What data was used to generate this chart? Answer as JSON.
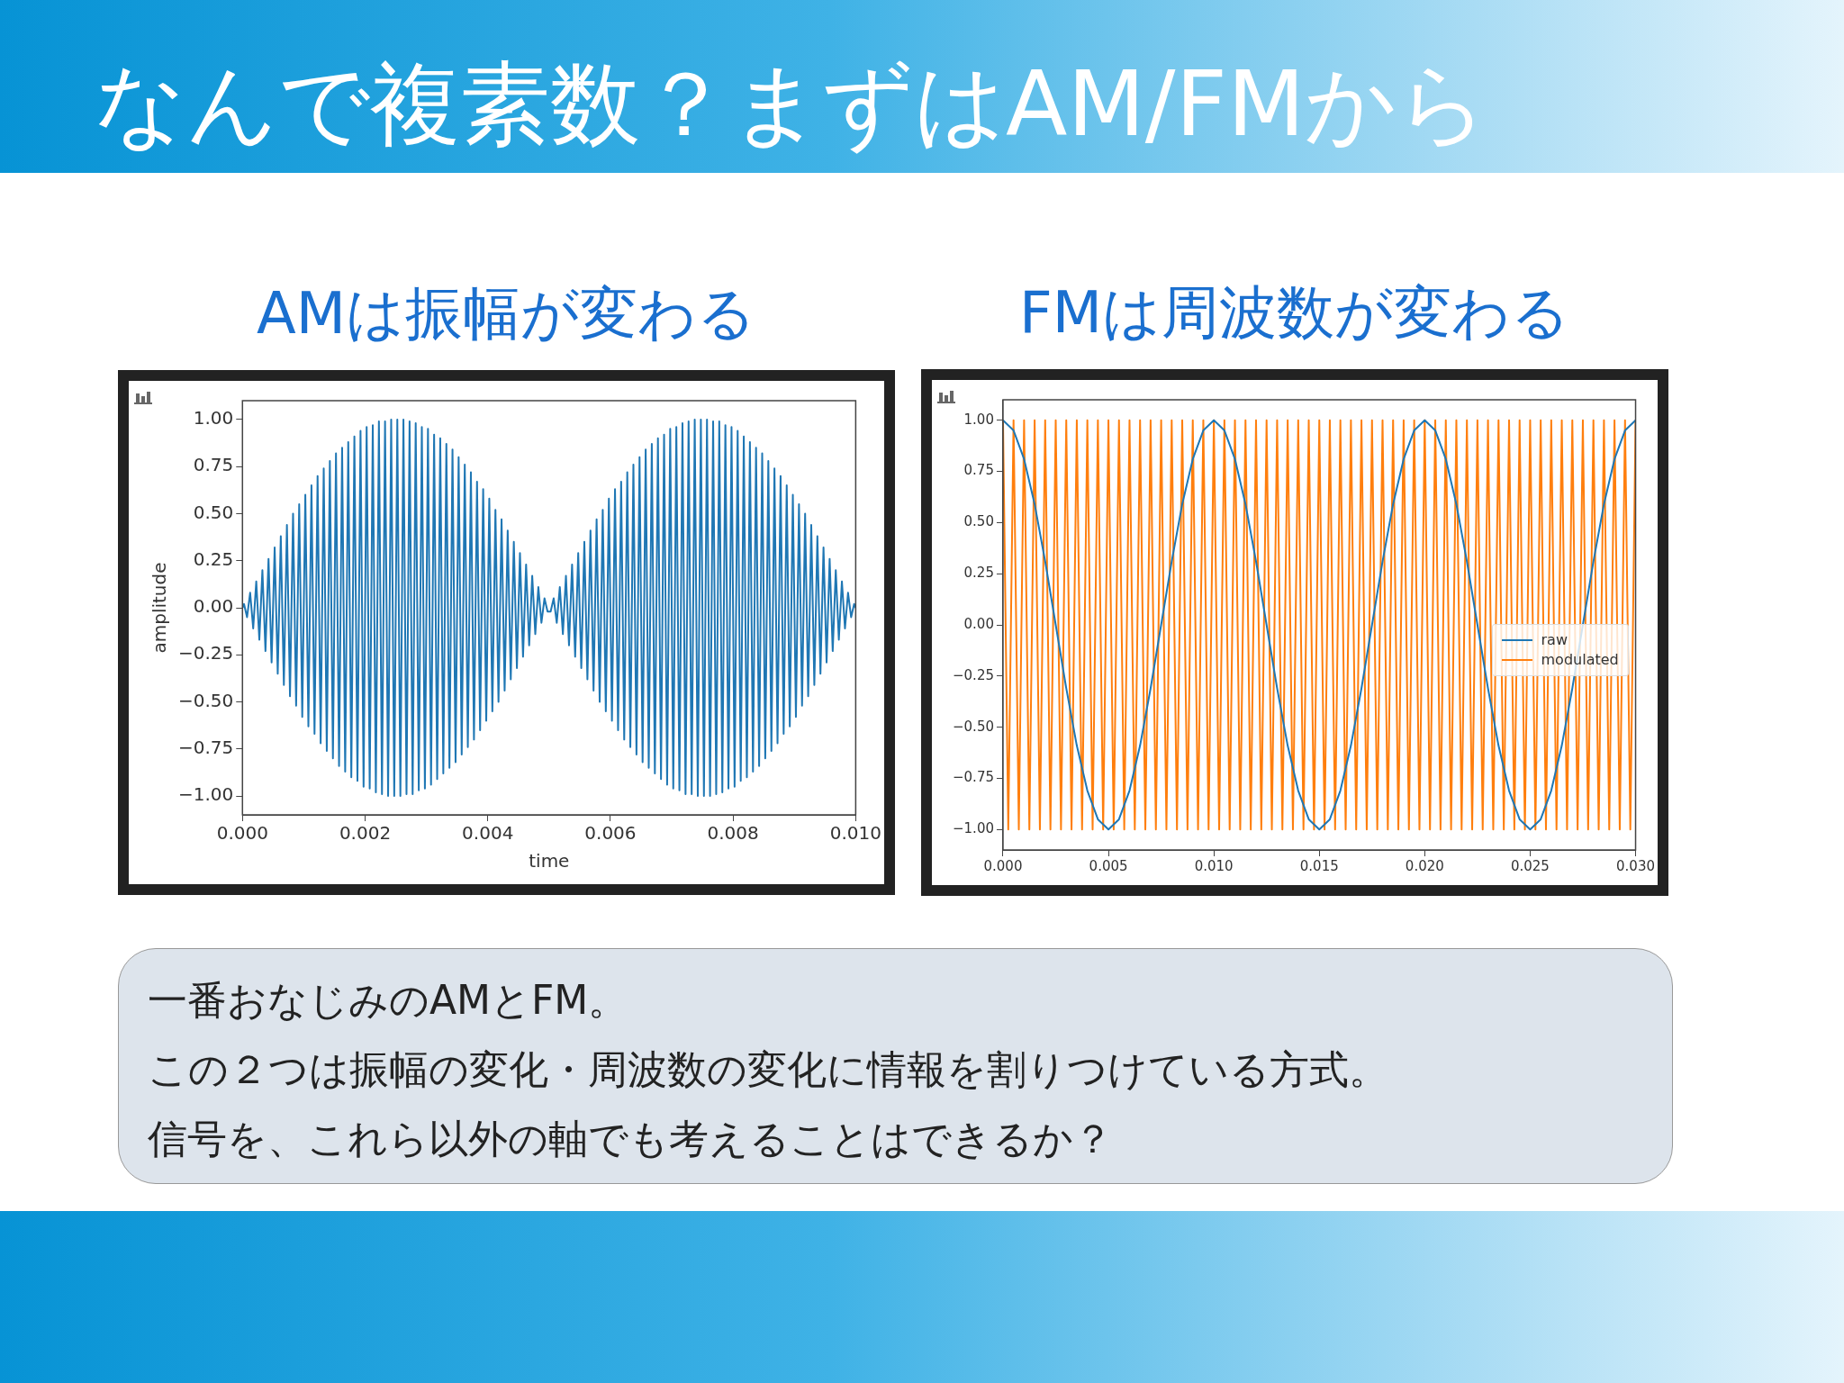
{
  "chart_data": [
    {
      "type": "line",
      "title": "AMは振幅が変わる",
      "xlabel": "time",
      "ylabel": "amplitude",
      "color": "#1f77b4",
      "x": [
        0,
        2.5e-05,
        7.5e-05,
        0.000125,
        0.000175,
        0.000225,
        0.000275,
        0.000325,
        0.000375,
        0.000425,
        0.000475,
        0.000525,
        0.000575,
        0.000625,
        0.000675,
        0.000725,
        0.000775,
        0.000825,
        0.000875,
        0.000925,
        0.000975,
        0.001025,
        0.001075,
        0.001125,
        0.001175,
        0.001225,
        0.001275,
        0.001325,
        0.001375,
        0.001425,
        0.001475,
        0.001525,
        0.001575,
        0.001625,
        0.001675,
        0.001725,
        0.001775,
        0.001825,
        0.001875,
        0.001925,
        0.001975,
        0.002025,
        0.002075,
        0.002125,
        0.002175,
        0.002225,
        0.002275,
        0.002325,
        0.002375,
        0.002425,
        0.002475,
        0.002525,
        0.002575,
        0.002625,
        0.002675,
        0.002725,
        0.002775,
        0.002825,
        0.002875,
        0.002925,
        0.002975,
        0.003025,
        0.003075,
        0.003125,
        0.003175,
        0.003225,
        0.003275,
        0.003325,
        0.003375,
        0.003425,
        0.003475,
        0.003525,
        0.003575,
        0.003625,
        0.003675,
        0.003725,
        0.003775,
        0.003825,
        0.003875,
        0.003925,
        0.003975,
        0.004025,
        0.004075,
        0.004125,
        0.004175,
        0.004225,
        0.004275,
        0.004325,
        0.004375,
        0.004425,
        0.004475,
        0.004525,
        0.004575,
        0.004625,
        0.004675,
        0.004725,
        0.004775,
        0.004825,
        0.004875,
        0.004925,
        0.004975,
        0.005025,
        0.005075,
        0.005125,
        0.005175,
        0.005225,
        0.005275,
        0.005325,
        0.005375,
        0.005425,
        0.005475,
        0.005525,
        0.005575,
        0.005625,
        0.005675,
        0.005725,
        0.005775,
        0.005825,
        0.005875,
        0.005925,
        0.005975,
        0.006025,
        0.006075,
        0.006125,
        0.006175,
        0.006225,
        0.006275,
        0.006325,
        0.006375,
        0.006425,
        0.006475,
        0.006525,
        0.006575,
        0.006625,
        0.006675,
        0.006725,
        0.006775,
        0.006825,
        0.006875,
        0.006925,
        0.006975,
        0.007025,
        0.007075,
        0.007125,
        0.007175,
        0.007225,
        0.007275,
        0.007325,
        0.007375,
        0.007425,
        0.007475,
        0.007525,
        0.007575,
        0.007625,
        0.007675,
        0.007725,
        0.007775,
        0.007825,
        0.007875,
        0.007925,
        0.007975,
        0.008025,
        0.008075,
        0.008125,
        0.008175,
        0.008225,
        0.008275,
        0.008325,
        0.008375,
        0.008425,
        0.008475,
        0.008525,
        0.008575,
        0.008625,
        0.008675,
        0.008725,
        0.008775,
        0.008825,
        0.008875,
        0.008925,
        0.008975,
        0.009025,
        0.009075,
        0.009125,
        0.009175,
        0.009225,
        0.009275,
        0.009325,
        0.009375,
        0.009425,
        0.009475,
        0.009525,
        0.009575,
        0.009625,
        0.009675,
        0.009725,
        0.009775,
        0.009825,
        0.009875,
        0.009925,
        0.009975,
        0.01
      ],
      "values": [
        0,
        0.02,
        -0.05,
        0.08,
        -0.11,
        0.14,
        -0.17,
        0.2,
        -0.23,
        0.26,
        -0.29,
        0.32,
        -0.35,
        0.38,
        -0.41,
        0.44,
        -0.47,
        0.5,
        -0.52,
        0.55,
        -0.58,
        0.6,
        -0.63,
        0.65,
        -0.67,
        0.7,
        -0.72,
        0.74,
        -0.76,
        0.78,
        -0.8,
        0.82,
        -0.84,
        0.85,
        -0.87,
        0.88,
        -0.9,
        0.91,
        -0.92,
        0.94,
        -0.95,
        0.96,
        -0.96,
        0.97,
        -0.98,
        0.99,
        -0.99,
        0.99,
        -1,
        1,
        -1,
        1,
        -1,
        1,
        -0.99,
        0.99,
        -0.99,
        0.98,
        -0.97,
        0.96,
        -0.96,
        0.95,
        -0.94,
        0.92,
        -0.91,
        0.9,
        -0.88,
        0.87,
        -0.85,
        0.84,
        -0.82,
        0.8,
        -0.78,
        0.76,
        -0.74,
        0.72,
        -0.7,
        0.67,
        -0.65,
        0.63,
        -0.6,
        0.58,
        -0.55,
        0.52,
        -0.5,
        0.47,
        -0.44,
        0.41,
        -0.38,
        0.35,
        -0.32,
        0.29,
        -0.26,
        0.23,
        -0.2,
        0.17,
        -0.14,
        0.11,
        -0.08,
        0.05,
        -0.02,
        -0.02,
        0.05,
        -0.08,
        0.11,
        -0.14,
        0.17,
        -0.2,
        0.23,
        -0.26,
        0.29,
        -0.32,
        0.35,
        -0.38,
        0.41,
        -0.44,
        0.47,
        -0.5,
        0.52,
        -0.55,
        0.58,
        -0.6,
        0.63,
        -0.65,
        0.67,
        -0.7,
        0.72,
        -0.74,
        0.76,
        -0.78,
        0.8,
        -0.82,
        0.84,
        -0.85,
        0.87,
        -0.88,
        0.9,
        -0.91,
        0.92,
        -0.94,
        0.95,
        -0.96,
        0.96,
        -0.97,
        0.98,
        -0.99,
        0.99,
        -0.99,
        1,
        -1,
        1,
        -1,
        1,
        -1,
        0.99,
        -0.99,
        0.99,
        -0.98,
        0.97,
        -0.96,
        0.96,
        -0.95,
        0.94,
        -0.92,
        0.91,
        -0.9,
        0.88,
        -0.87,
        0.85,
        -0.84,
        0.82,
        -0.8,
        0.78,
        -0.76,
        0.74,
        -0.72,
        0.7,
        -0.67,
        0.65,
        -0.63,
        0.6,
        -0.58,
        0.55,
        -0.52,
        0.5,
        -0.47,
        0.44,
        -0.41,
        0.38,
        -0.35,
        0.32,
        -0.29,
        0.26,
        -0.23,
        0.2,
        -0.17,
        0.14,
        -0.11,
        0.08,
        -0.05,
        0.02,
        0
      ],
      "xlim": [
        0,
        0.01
      ],
      "xticks": [
        {
          "value": 0,
          "label": "0.000"
        },
        {
          "value": 0.002,
          "label": "0.002"
        },
        {
          "value": 0.004,
          "label": "0.004"
        },
        {
          "value": 0.006,
          "label": "0.006"
        },
        {
          "value": 0.008,
          "label": "0.008"
        },
        {
          "value": 0.01,
          "label": "0.010"
        }
      ],
      "ylim": [
        -1.1,
        1.1
      ],
      "yticks": [
        {
          "value": -1,
          "label": "−1.00"
        },
        {
          "value": -0.75,
          "label": "−0.75"
        },
        {
          "value": -0.5,
          "label": "−0.50"
        },
        {
          "value": -0.25,
          "label": "−0.25"
        },
        {
          "value": 0,
          "label": "0.00"
        },
        {
          "value": 0.25,
          "label": "0.25"
        },
        {
          "value": 0.5,
          "label": "0.50"
        },
        {
          "value": 0.75,
          "label": "0.75"
        },
        {
          "value": 1,
          "label": "1.00"
        }
      ],
      "grid": false
    },
    {
      "type": "line",
      "title": "FMは周波数が変わる",
      "legend": "right",
      "grid": false,
      "series": [
        {
          "name": "raw",
          "color": "#1f77b4",
          "x": [
            0,
            0.0005,
            0.001,
            0.0015,
            0.002,
            0.0025,
            0.003,
            0.0035,
            0.004,
            0.0045,
            0.005,
            0.0055,
            0.006,
            0.0065,
            0.007,
            0.0075,
            0.008,
            0.0085,
            0.009,
            0.0095,
            0.01,
            0.0105,
            0.011,
            0.0115,
            0.012,
            0.0125,
            0.013,
            0.0135,
            0.014,
            0.0145,
            0.015,
            0.0155,
            0.016,
            0.0165,
            0.017,
            0.0175,
            0.018,
            0.0185,
            0.019,
            0.0195,
            0.02,
            0.0205,
            0.021,
            0.0215,
            0.022,
            0.0225,
            0.023,
            0.0235,
            0.024,
            0.0245,
            0.025,
            0.0255,
            0.026,
            0.0265,
            0.027,
            0.0275,
            0.028,
            0.0285,
            0.029,
            0.0295,
            0.03
          ],
          "values": [
            1,
            0.95,
            0.81,
            0.59,
            0.31,
            0,
            -0.31,
            -0.59,
            -0.81,
            -0.95,
            -1,
            -0.95,
            -0.81,
            -0.59,
            -0.31,
            0,
            0.31,
            0.59,
            0.81,
            0.95,
            1,
            0.95,
            0.81,
            0.59,
            0.31,
            0,
            -0.31,
            -0.59,
            -0.81,
            -0.95,
            -1,
            -0.95,
            -0.81,
            -0.59,
            -0.31,
            0,
            0.31,
            0.59,
            0.81,
            0.95,
            1,
            0.95,
            0.81,
            0.59,
            0.31,
            0,
            -0.31,
            -0.59,
            -0.81,
            -0.95,
            -1,
            -0.95,
            -0.81,
            -0.59,
            -0.31,
            0,
            0.31,
            0.59,
            0.81,
            0.95,
            1
          ]
        },
        {
          "name": "modulated",
          "color": "#ff7f0e",
          "x": [
            0,
            0.00025,
            0.0005,
            0.00075,
            0.001,
            0.00125,
            0.0015,
            0.00175,
            0.002,
            0.00225,
            0.0025,
            0.00275,
            0.003,
            0.00325,
            0.0035,
            0.00375,
            0.004,
            0.00425,
            0.0045,
            0.00475,
            0.005,
            0.00525,
            0.0055,
            0.00575,
            0.006,
            0.00625,
            0.0065,
            0.00675,
            0.007,
            0.00725,
            0.0075,
            0.00775,
            0.008,
            0.00825,
            0.0085,
            0.00875,
            0.009,
            0.00925,
            0.0095,
            0.00975,
            0.01,
            0.01025,
            0.0105,
            0.01075,
            0.011,
            0.01125,
            0.0115,
            0.01175,
            0.012,
            0.01225,
            0.0125,
            0.01275,
            0.013,
            0.01325,
            0.0135,
            0.01375,
            0.014,
            0.01425,
            0.0145,
            0.01475,
            0.015,
            0.01525,
            0.0155,
            0.01575,
            0.016,
            0.01625,
            0.0165,
            0.01675,
            0.017,
            0.01725,
            0.0175,
            0.01775,
            0.018,
            0.01825,
            0.0185,
            0.01875,
            0.019,
            0.01925,
            0.0195,
            0.01975,
            0.02,
            0.02025,
            0.0205,
            0.02075,
            0.021,
            0.02125,
            0.0215,
            0.02175,
            0.022,
            0.02225,
            0.0225,
            0.02275,
            0.023,
            0.02325,
            0.0235,
            0.02375,
            0.024,
            0.02425,
            0.0245,
            0.02475,
            0.025,
            0.02525,
            0.0255,
            0.02575,
            0.026,
            0.02625,
            0.0265,
            0.02675,
            0.027,
            0.02725,
            0.0275,
            0.02775,
            0.028,
            0.02825,
            0.0285,
            0.02875,
            0.029,
            0.02925,
            0.0295,
            0.02975,
            0.03
          ],
          "values": [
            1,
            -1,
            1,
            -1,
            1,
            -1,
            1,
            -1,
            1,
            -1,
            1,
            -1,
            1,
            -1,
            1,
            -1,
            1,
            -1,
            1,
            -1,
            1,
            -1,
            1,
            -1,
            1,
            -1,
            1,
            -1,
            1,
            -1,
            1,
            -1,
            1,
            -1,
            1,
            -1,
            1,
            -1,
            1,
            -1,
            1,
            -1,
            1,
            -1,
            1,
            -1,
            1,
            -1,
            1,
            -1,
            1,
            -1,
            1,
            -1,
            1,
            -1,
            1,
            -1,
            1,
            -1,
            1,
            -1,
            1,
            -1,
            1,
            -1,
            1,
            -1,
            1,
            -1,
            1,
            -1,
            1,
            -1,
            1,
            -1,
            1,
            -1,
            1,
            -1,
            1,
            -1,
            1,
            -1,
            1,
            -1,
            1,
            -1,
            1,
            -1,
            1,
            -1,
            1,
            -1,
            1,
            -1,
            1,
            -1,
            1,
            -1,
            1,
            -1,
            1,
            -1,
            1,
            -1,
            1,
            -1,
            1,
            -1,
            1,
            -1,
            1,
            -1,
            1,
            -1,
            1,
            -1,
            1,
            -1,
            1
          ]
        }
      ],
      "xlim": [
        0,
        0.03
      ],
      "xticks": [
        {
          "value": 0,
          "label": "0.000"
        },
        {
          "value": 0.005,
          "label": "0.005"
        },
        {
          "value": 0.01,
          "label": "0.010"
        },
        {
          "value": 0.015,
          "label": "0.015"
        },
        {
          "value": 0.02,
          "label": "0.020"
        },
        {
          "value": 0.025,
          "label": "0.025"
        },
        {
          "value": 0.03,
          "label": "0.030"
        }
      ],
      "ylim": [
        -1.1,
        1.1
      ],
      "yticks": [
        {
          "value": -1,
          "label": "−1.00"
        },
        {
          "value": -0.75,
          "label": "−0.75"
        },
        {
          "value": -0.5,
          "label": "−0.50"
        },
        {
          "value": -0.25,
          "label": "−0.25"
        },
        {
          "value": 0,
          "label": "0.00"
        },
        {
          "value": 0.25,
          "label": "0.25"
        },
        {
          "value": 0.5,
          "label": "0.50"
        },
        {
          "value": 0.75,
          "label": "0.75"
        },
        {
          "value": 1,
          "label": "1.00"
        }
      ]
    },
    {
      "type": "other",
      "title": "なんで複素数？まずはAM/FMから",
      "annotations": [
        "一番おなじみのAMとFM。",
        "この２つは振幅の変化・周波数の変化に情報を割りつけている方式。",
        "信号を、これら以外の軸でも考えることはできるか？"
      ]
    }
  ]
}
